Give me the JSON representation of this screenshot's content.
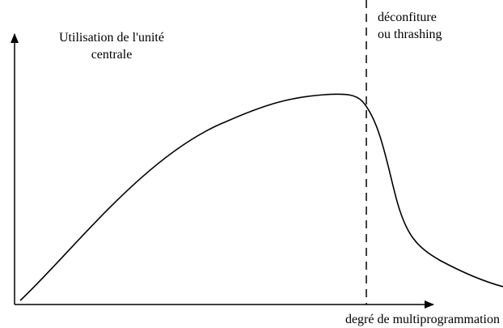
{
  "y_axis_label": {
    "line1": "Utilisation de l'unité",
    "line2": "centrale"
  },
  "annotation": {
    "line1": "déconfiture",
    "line2": "ou thrashing"
  },
  "x_axis_label": "degré de multiprogrammation"
}
